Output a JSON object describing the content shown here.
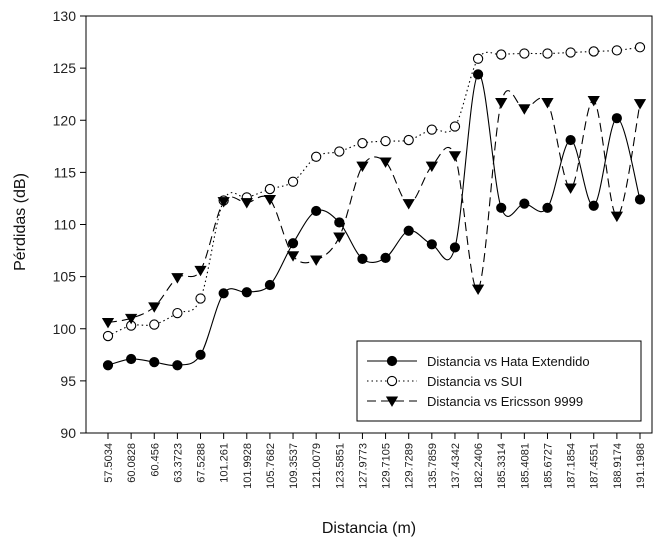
{
  "chart_data": {
    "type": "line",
    "title": "",
    "xlabel": "Distancia (m)",
    "ylabel": "Pérdidas (dB)",
    "ylim": [
      90,
      130
    ],
    "yticks": [
      90,
      95,
      100,
      105,
      110,
      115,
      120,
      125,
      130
    ],
    "grid": false,
    "legend_position": "bottom-right",
    "categories": [
      "57.5034",
      "60.0828",
      "60.456",
      "63.3723",
      "67.5288",
      "101.261",
      "101.9928",
      "105.7682",
      "109.3537",
      "121.0079",
      "123.5851",
      "127.9773",
      "129.7105",
      "129.7289",
      "135.7859",
      "137.4342",
      "182.2406",
      "185.3314",
      "185.4081",
      "185.6727",
      "187.1854",
      "187.4551",
      "188.9174",
      "191.1988"
    ],
    "series": [
      {
        "name": "Distancia vs Hata Extendido",
        "marker": "filled-circle",
        "line_style": "solid",
        "values": [
          96.5,
          97.1,
          96.8,
          96.5,
          97.5,
          103.4,
          103.5,
          104.2,
          108.2,
          111.3,
          110.2,
          106.7,
          106.8,
          109.4,
          108.1,
          107.8,
          124.4,
          111.6,
          112.0,
          111.6,
          118.1,
          111.8,
          120.2,
          112.4
        ]
      },
      {
        "name": "Distancia vs SUI",
        "marker": "open-circle",
        "line_style": "dotted",
        "values": [
          99.3,
          100.3,
          100.4,
          101.5,
          102.9,
          112.3,
          112.6,
          113.4,
          114.1,
          116.5,
          117.0,
          117.8,
          118.0,
          118.1,
          119.1,
          119.4,
          125.9,
          126.3,
          126.4,
          126.4,
          126.5,
          126.6,
          126.7,
          127.0
        ]
      },
      {
        "name": "Distancia vs Ericsson 9999",
        "marker": "filled-triangle-down",
        "line_style": "dashed",
        "values": [
          100.6,
          101.0,
          102.1,
          104.9,
          105.6,
          112.2,
          112.1,
          112.4,
          107.0,
          106.6,
          108.8,
          115.6,
          116.0,
          112.0,
          115.6,
          116.6,
          103.8,
          121.7,
          121.1,
          121.7,
          113.5,
          121.9,
          110.8,
          121.6
        ]
      }
    ]
  }
}
